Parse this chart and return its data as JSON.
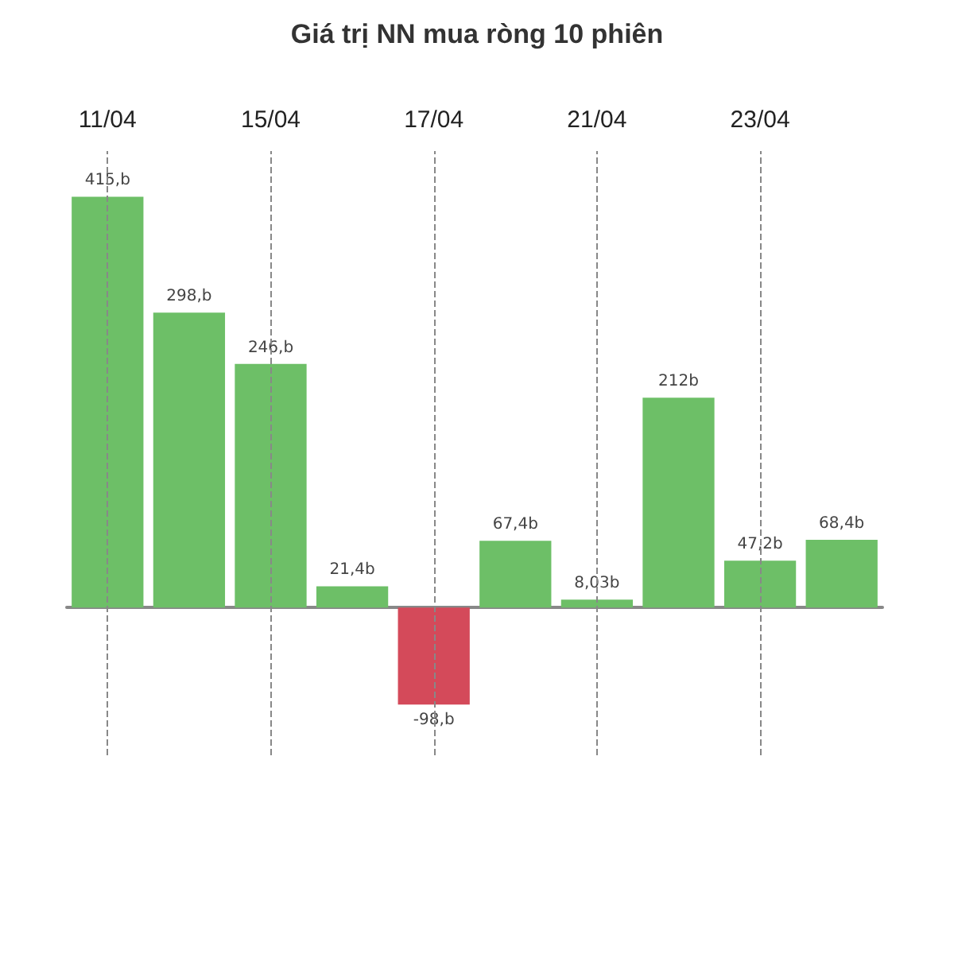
{
  "chart_data": {
    "type": "bar",
    "title": "Giá trị NN mua ròng 10 phiên",
    "categories": [
      "11/04",
      null,
      "15/04",
      null,
      "17/04",
      null,
      "21/04",
      null,
      "23/04",
      null
    ],
    "values": [
      415,
      298,
      246,
      21.4,
      -98,
      67.4,
      8.03,
      212,
      47.2,
      68.4
    ],
    "value_labels": [
      "415,b",
      "298,b",
      "246,b",
      "21,4b",
      "-98,b",
      "67,4b",
      "8,03b",
      "212b",
      "47,2b",
      "68,4b"
    ],
    "colors": [
      "#6dbf67",
      "#6dbf67",
      "#6dbf67",
      "#6dbf67",
      "#d44a5a",
      "#6dbf67",
      "#6dbf67",
      "#6dbf67",
      "#6dbf67",
      "#6dbf67"
    ],
    "grid": "x"
  }
}
